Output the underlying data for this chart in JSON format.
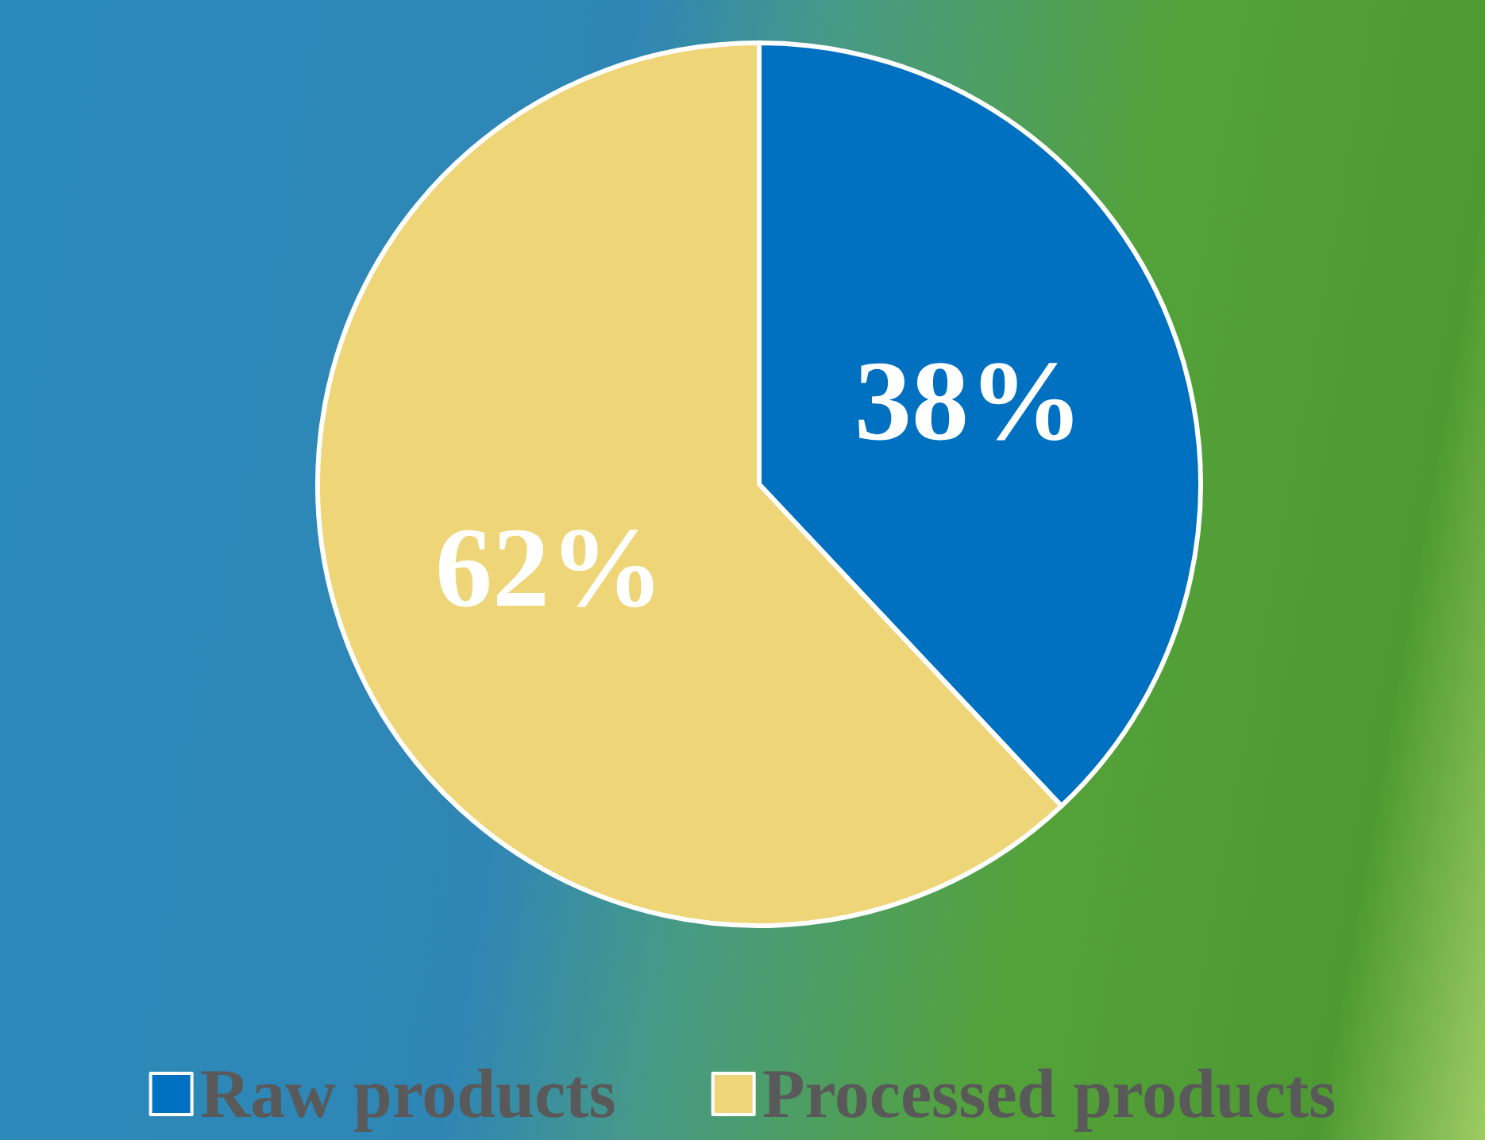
{
  "chart_data": {
    "type": "pie",
    "categories": [
      "Raw products",
      "Processed products"
    ],
    "values": [
      38,
      62
    ],
    "colors": [
      "#0070c0",
      "#eed577"
    ],
    "value_labels": [
      "38%",
      "62%"
    ],
    "legend": "bottom"
  }
}
